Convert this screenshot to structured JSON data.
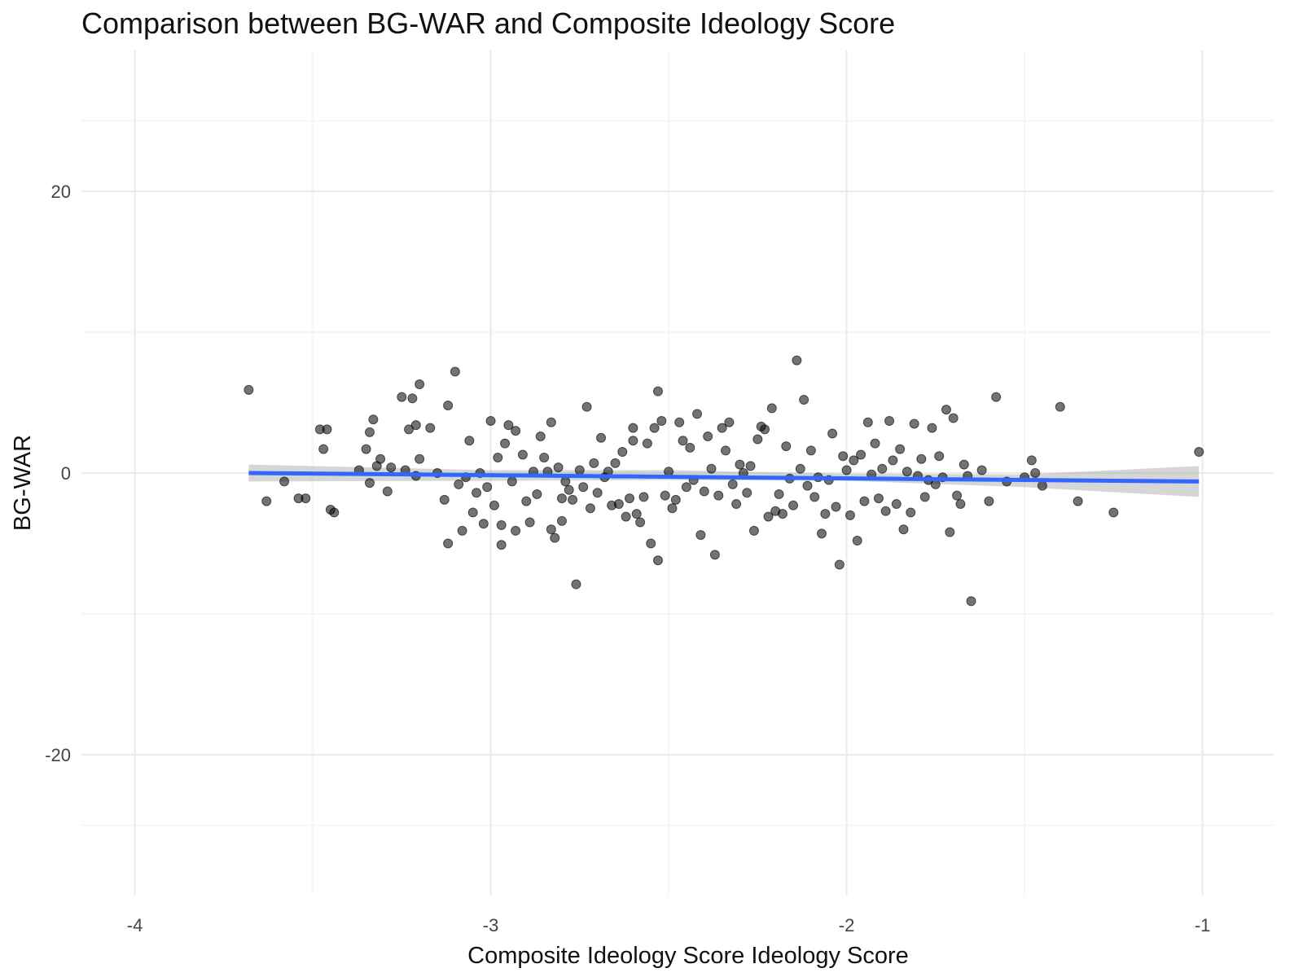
{
  "chart_data": {
    "type": "scatter",
    "title": "Comparison between BG-WAR and Composite Ideology Score",
    "xlabel": "Composite Ideology Score Ideology Score",
    "ylabel": "BG-WAR",
    "xlim": [
      -4.15,
      -0.8
    ],
    "ylim": [
      -30,
      30
    ],
    "x_ticks": [
      -4,
      -3,
      -2,
      -1
    ],
    "x_tick_labels": [
      "-4",
      "-3",
      "-2",
      "-1"
    ],
    "y_ticks": [
      -20,
      0,
      20
    ],
    "y_tick_labels": [
      "-20",
      "0",
      "20"
    ],
    "grid": true,
    "legend": "none",
    "point_color": "#000000",
    "point_opacity": 0.55,
    "trend_color": "#3366ff",
    "band_color": "#999999",
    "trend_line": {
      "x": [
        -3.68,
        -1.01
      ],
      "y": [
        0.0,
        -0.6
      ]
    },
    "confidence_band": {
      "x": [
        -3.68,
        -3.0,
        -2.5,
        -2.0,
        -1.5,
        -1.01
      ],
      "upper": [
        0.6,
        0.2,
        0.2,
        -0.05,
        -0.1,
        0.5
      ],
      "lower": [
        -0.6,
        -0.55,
        -0.5,
        -0.55,
        -1.0,
        -1.7
      ]
    },
    "points": [
      {
        "x": -3.68,
        "y": 5.9
      },
      {
        "x": -3.63,
        "y": -2.0
      },
      {
        "x": -3.58,
        "y": -0.6
      },
      {
        "x": -3.54,
        "y": -1.8
      },
      {
        "x": -3.52,
        "y": -1.8
      },
      {
        "x": -3.48,
        "y": 3.1
      },
      {
        "x": -3.47,
        "y": 1.7
      },
      {
        "x": -3.46,
        "y": 3.1
      },
      {
        "x": -3.45,
        "y": -2.6
      },
      {
        "x": -3.44,
        "y": -2.8
      },
      {
        "x": -3.37,
        "y": 0.2
      },
      {
        "x": -3.35,
        "y": 1.7
      },
      {
        "x": -3.34,
        "y": 2.9
      },
      {
        "x": -3.34,
        "y": -0.7
      },
      {
        "x": -3.33,
        "y": 3.8
      },
      {
        "x": -3.32,
        "y": 0.5
      },
      {
        "x": -3.31,
        "y": 1.0
      },
      {
        "x": -3.29,
        "y": -1.3
      },
      {
        "x": -3.28,
        "y": 0.4
      },
      {
        "x": -3.25,
        "y": 5.4
      },
      {
        "x": -3.24,
        "y": 0.2
      },
      {
        "x": -3.23,
        "y": 3.1
      },
      {
        "x": -3.22,
        "y": 5.3
      },
      {
        "x": -3.21,
        "y": 3.4
      },
      {
        "x": -3.21,
        "y": -0.2
      },
      {
        "x": -3.2,
        "y": 6.3
      },
      {
        "x": -3.2,
        "y": 1.0
      },
      {
        "x": -3.17,
        "y": 3.2
      },
      {
        "x": -3.15,
        "y": 0.0
      },
      {
        "x": -3.13,
        "y": -1.9
      },
      {
        "x": -3.12,
        "y": 4.8
      },
      {
        "x": -3.12,
        "y": -5.0
      },
      {
        "x": -3.1,
        "y": 7.2
      },
      {
        "x": -3.09,
        "y": -0.8
      },
      {
        "x": -3.08,
        "y": -4.1
      },
      {
        "x": -3.07,
        "y": -0.3
      },
      {
        "x": -3.06,
        "y": 2.3
      },
      {
        "x": -3.05,
        "y": -2.8
      },
      {
        "x": -3.04,
        "y": -1.4
      },
      {
        "x": -3.03,
        "y": 0.0
      },
      {
        "x": -3.02,
        "y": -3.6
      },
      {
        "x": -3.01,
        "y": -1.0
      },
      {
        "x": -3.0,
        "y": 3.7
      },
      {
        "x": -2.99,
        "y": -2.3
      },
      {
        "x": -2.98,
        "y": 1.1
      },
      {
        "x": -2.97,
        "y": -3.7
      },
      {
        "x": -2.97,
        "y": -5.1
      },
      {
        "x": -2.96,
        "y": 2.1
      },
      {
        "x": -2.95,
        "y": 3.4
      },
      {
        "x": -2.94,
        "y": -0.6
      },
      {
        "x": -2.93,
        "y": -4.1
      },
      {
        "x": -2.93,
        "y": 3.0
      },
      {
        "x": -2.91,
        "y": 1.3
      },
      {
        "x": -2.9,
        "y": -2.0
      },
      {
        "x": -2.89,
        "y": -3.5
      },
      {
        "x": -2.88,
        "y": 0.1
      },
      {
        "x": -2.87,
        "y": -1.5
      },
      {
        "x": -2.86,
        "y": 2.6
      },
      {
        "x": -2.85,
        "y": 1.1
      },
      {
        "x": -2.84,
        "y": 0.1
      },
      {
        "x": -2.83,
        "y": 3.6
      },
      {
        "x": -2.83,
        "y": -4.0
      },
      {
        "x": -2.82,
        "y": -4.6
      },
      {
        "x": -2.81,
        "y": 0.4
      },
      {
        "x": -2.8,
        "y": -1.8
      },
      {
        "x": -2.8,
        "y": -3.4
      },
      {
        "x": -2.79,
        "y": -0.6
      },
      {
        "x": -2.78,
        "y": -1.2
      },
      {
        "x": -2.77,
        "y": -1.9
      },
      {
        "x": -2.76,
        "y": -7.9
      },
      {
        "x": -2.75,
        "y": 0.2
      },
      {
        "x": -2.74,
        "y": -1.0
      },
      {
        "x": -2.73,
        "y": 4.7
      },
      {
        "x": -2.72,
        "y": -2.5
      },
      {
        "x": -2.71,
        "y": 0.7
      },
      {
        "x": -2.7,
        "y": -1.4
      },
      {
        "x": -2.69,
        "y": 2.5
      },
      {
        "x": -2.68,
        "y": -0.3
      },
      {
        "x": -2.67,
        "y": 0.1
      },
      {
        "x": -2.66,
        "y": -2.3
      },
      {
        "x": -2.65,
        "y": 0.7
      },
      {
        "x": -2.64,
        "y": -2.2
      },
      {
        "x": -2.63,
        "y": 1.5
      },
      {
        "x": -2.62,
        "y": -3.1
      },
      {
        "x": -2.61,
        "y": -1.8
      },
      {
        "x": -2.6,
        "y": 3.2
      },
      {
        "x": -2.6,
        "y": 2.3
      },
      {
        "x": -2.59,
        "y": -2.9
      },
      {
        "x": -2.58,
        "y": -3.5
      },
      {
        "x": -2.57,
        "y": -1.7
      },
      {
        "x": -2.56,
        "y": 2.1
      },
      {
        "x": -2.55,
        "y": -5.0
      },
      {
        "x": -2.54,
        "y": 3.2
      },
      {
        "x": -2.53,
        "y": 5.8
      },
      {
        "x": -2.53,
        "y": -6.2
      },
      {
        "x": -2.52,
        "y": 3.7
      },
      {
        "x": -2.51,
        "y": -1.6
      },
      {
        "x": -2.5,
        "y": 0.1
      },
      {
        "x": -2.49,
        "y": -2.5
      },
      {
        "x": -2.48,
        "y": -1.9
      },
      {
        "x": -2.47,
        "y": 3.6
      },
      {
        "x": -2.46,
        "y": 2.3
      },
      {
        "x": -2.45,
        "y": -1.0
      },
      {
        "x": -2.44,
        "y": 1.8
      },
      {
        "x": -2.43,
        "y": -0.5
      },
      {
        "x": -2.42,
        "y": 4.2
      },
      {
        "x": -2.41,
        "y": -4.4
      },
      {
        "x": -2.4,
        "y": -1.3
      },
      {
        "x": -2.39,
        "y": 2.6
      },
      {
        "x": -2.38,
        "y": 0.3
      },
      {
        "x": -2.37,
        "y": -5.8
      },
      {
        "x": -2.36,
        "y": -1.6
      },
      {
        "x": -2.35,
        "y": 3.2
      },
      {
        "x": -2.34,
        "y": 1.6
      },
      {
        "x": -2.33,
        "y": 3.6
      },
      {
        "x": -2.32,
        "y": -0.8
      },
      {
        "x": -2.31,
        "y": -2.2
      },
      {
        "x": -2.3,
        "y": 0.6
      },
      {
        "x": -2.29,
        "y": 0.0
      },
      {
        "x": -2.28,
        "y": -1.4
      },
      {
        "x": -2.27,
        "y": 0.5
      },
      {
        "x": -2.26,
        "y": -4.1
      },
      {
        "x": -2.25,
        "y": 2.4
      },
      {
        "x": -2.24,
        "y": 3.3
      },
      {
        "x": -2.23,
        "y": 3.1
      },
      {
        "x": -2.22,
        "y": -3.1
      },
      {
        "x": -2.21,
        "y": 4.6
      },
      {
        "x": -2.2,
        "y": -2.7
      },
      {
        "x": -2.19,
        "y": -1.5
      },
      {
        "x": -2.18,
        "y": -2.9
      },
      {
        "x": -2.17,
        "y": 1.9
      },
      {
        "x": -2.16,
        "y": -0.4
      },
      {
        "x": -2.15,
        "y": -2.3
      },
      {
        "x": -2.14,
        "y": 8.0
      },
      {
        "x": -2.13,
        "y": 0.3
      },
      {
        "x": -2.12,
        "y": 5.2
      },
      {
        "x": -2.11,
        "y": -0.9
      },
      {
        "x": -2.1,
        "y": 1.6
      },
      {
        "x": -2.09,
        "y": -1.7
      },
      {
        "x": -2.08,
        "y": -0.3
      },
      {
        "x": -2.07,
        "y": -4.3
      },
      {
        "x": -2.06,
        "y": -2.9
      },
      {
        "x": -2.05,
        "y": -0.5
      },
      {
        "x": -2.04,
        "y": 2.8
      },
      {
        "x": -2.03,
        "y": -2.4
      },
      {
        "x": -2.02,
        "y": -6.5
      },
      {
        "x": -2.01,
        "y": 1.2
      },
      {
        "x": -2.0,
        "y": 0.2
      },
      {
        "x": -1.99,
        "y": -3.0
      },
      {
        "x": -1.98,
        "y": 0.9
      },
      {
        "x": -1.97,
        "y": -4.8
      },
      {
        "x": -1.96,
        "y": 1.3
      },
      {
        "x": -1.95,
        "y": -2.0
      },
      {
        "x": -1.94,
        "y": 3.6
      },
      {
        "x": -1.93,
        "y": -0.1
      },
      {
        "x": -1.92,
        "y": 2.1
      },
      {
        "x": -1.91,
        "y": -1.8
      },
      {
        "x": -1.9,
        "y": 0.3
      },
      {
        "x": -1.89,
        "y": -2.7
      },
      {
        "x": -1.88,
        "y": 3.7
      },
      {
        "x": -1.87,
        "y": 0.9
      },
      {
        "x": -1.86,
        "y": -2.2
      },
      {
        "x": -1.85,
        "y": 1.7
      },
      {
        "x": -1.84,
        "y": -4.0
      },
      {
        "x": -1.83,
        "y": 0.1
      },
      {
        "x": -1.82,
        "y": -2.8
      },
      {
        "x": -1.81,
        "y": 3.5
      },
      {
        "x": -1.8,
        "y": -0.2
      },
      {
        "x": -1.79,
        "y": 1.0
      },
      {
        "x": -1.78,
        "y": -1.7
      },
      {
        "x": -1.77,
        "y": -0.5
      },
      {
        "x": -1.76,
        "y": 3.2
      },
      {
        "x": -1.75,
        "y": -0.8
      },
      {
        "x": -1.74,
        "y": 1.2
      },
      {
        "x": -1.73,
        "y": -0.3
      },
      {
        "x": -1.72,
        "y": 4.5
      },
      {
        "x": -1.71,
        "y": -4.2
      },
      {
        "x": -1.7,
        "y": 3.9
      },
      {
        "x": -1.69,
        "y": -1.6
      },
      {
        "x": -1.68,
        "y": -2.2
      },
      {
        "x": -1.67,
        "y": 0.6
      },
      {
        "x": -1.66,
        "y": -0.2
      },
      {
        "x": -1.65,
        "y": -9.1
      },
      {
        "x": -1.62,
        "y": 0.2
      },
      {
        "x": -1.6,
        "y": -2.0
      },
      {
        "x": -1.58,
        "y": 5.4
      },
      {
        "x": -1.55,
        "y": -0.6
      },
      {
        "x": -1.5,
        "y": -0.3
      },
      {
        "x": -1.48,
        "y": 0.9
      },
      {
        "x": -1.47,
        "y": 0.0
      },
      {
        "x": -1.45,
        "y": -0.9
      },
      {
        "x": -1.4,
        "y": 4.7
      },
      {
        "x": -1.35,
        "y": -2.0
      },
      {
        "x": -1.25,
        "y": -2.8
      },
      {
        "x": -1.01,
        "y": 1.5
      }
    ]
  }
}
